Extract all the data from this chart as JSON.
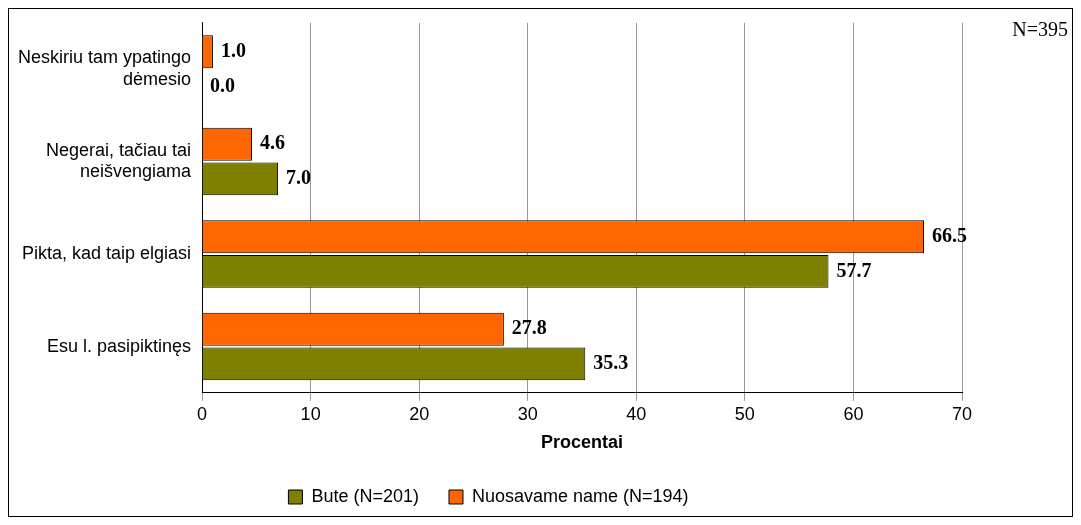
{
  "chart_data": {
    "type": "bar",
    "orientation": "horizontal",
    "categories": [
      "Neskiriu tam ypatingo dėmesio",
      "Negerai, tačiau tai neišvengiama",
      "Pikta, kad taip elgiasi",
      "Esu l. pasipiktinęs"
    ],
    "series": [
      {
        "name": "Bute (N=201)",
        "color": "#808000",
        "values": [
          0.0,
          7.0,
          57.7,
          35.3
        ],
        "value_labels": [
          "0.0",
          "7.0",
          "57.7",
          "35.3"
        ]
      },
      {
        "name": "Nuosavame name (N=194)",
        "color": "#ff6600",
        "values": [
          1.0,
          4.6,
          66.5,
          27.8
        ],
        "value_labels": [
          "1.0",
          "4.6",
          "66.5",
          "27.8"
        ]
      }
    ],
    "xlim": [
      0,
      70
    ],
    "xticks": [
      0,
      10,
      20,
      30,
      40,
      50,
      60,
      70
    ],
    "xlabel": "Procentai",
    "grid": "x",
    "legend": "bottom",
    "annotations": [
      "N=395"
    ]
  }
}
